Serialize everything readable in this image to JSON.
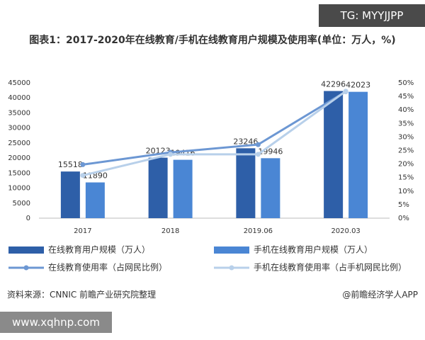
{
  "watermark_top": "TG: MYYJJPP",
  "watermark_bottom": "www.xqhnp.com",
  "source": "资料来源：CNNIC 前瞻产业研究院整理",
  "credit": "@前瞻经济学人APP",
  "chart_data": {
    "type": "bar",
    "title": "图表1：2017-2020年在线教育/手机在线教育用户规模及使用率(单位：万人，%)",
    "categories": [
      "2017",
      "2018",
      "2019.06",
      "2020.03"
    ],
    "series": [
      {
        "name": "在线教育用户规模（万人）",
        "color": "#2e5fa8",
        "values": [
          15518,
          20123,
          23246,
          42296
        ]
      },
      {
        "name": "手机在线教育用户规模（万人）",
        "color": "#4a86d4",
        "values": [
          11890,
          19416,
          19946,
          42023
        ]
      },
      {
        "name": "在线教育使用率（占网民比例）",
        "type": "line",
        "axis": "y2",
        "color": "#6c97d3",
        "values": [
          19.8,
          24.3,
          27.2,
          46.8
        ]
      },
      {
        "name": "手机在线教育使用率（占手机网民比例）",
        "type": "line",
        "axis": "y2",
        "color": "#b8d0ea",
        "values": [
          15.8,
          23.6,
          23.6,
          46.9
        ]
      }
    ],
    "ylim": [
      0,
      45000
    ],
    "yticks": [
      0,
      5000,
      10000,
      15000,
      20000,
      25000,
      30000,
      35000,
      40000,
      45000
    ],
    "y2lim": [
      0,
      50
    ],
    "y2ticks": [
      {
        "value": 0,
        "label": "0%"
      },
      {
        "value": 5,
        "label": "5%"
      },
      {
        "value": 10,
        "label": "10%"
      },
      {
        "value": 15,
        "label": "15%"
      },
      {
        "value": 20,
        "label": "20%"
      },
      {
        "value": 25,
        "label": "25%"
      },
      {
        "value": 30,
        "label": "30%"
      },
      {
        "value": 35,
        "label": "35%"
      },
      {
        "value": 40,
        "label": "40%"
      },
      {
        "value": 45,
        "label": "45%"
      },
      {
        "value": 50,
        "label": "50%"
      }
    ],
    "grid": false
  }
}
